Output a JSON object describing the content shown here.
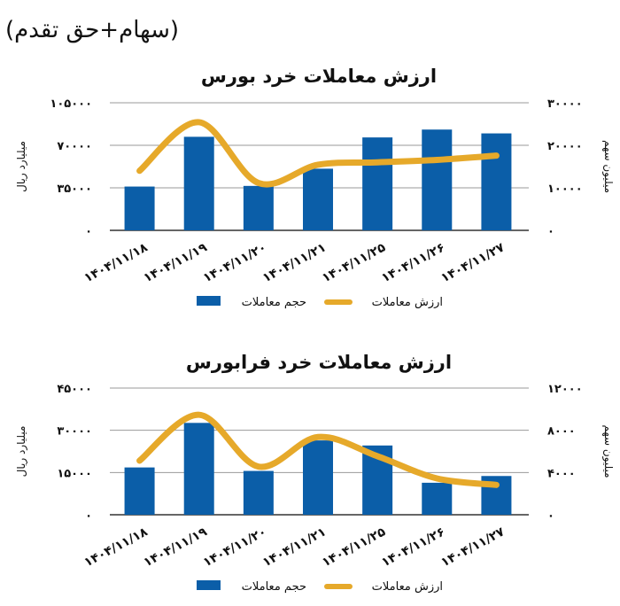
{
  "header": "(سهام+حق تقدم)",
  "colors": {
    "bars": "#0b5ea8",
    "line": "#e6a92a",
    "grid": "#9a9a9a"
  },
  "chart_data": [
    {
      "type": "bar+line",
      "title": "ارزش معاملات خرد بورس",
      "categories": [
        "۱۴۰۴/۱۱/۱۸",
        "۱۴۰۴/۱۱/۱۹",
        "۱۴۰۴/۱۱/۲۰",
        "۱۴۰۴/۱۱/۲۱",
        "۱۴۰۴/۱۱/۲۵",
        "۱۴۰۴/۱۱/۲۶",
        "۱۴۰۴/۱۱/۲۷"
      ],
      "left_axis": {
        "label": "میلیارد ریال",
        "ylim": [
          0,
          105000
        ],
        "ticks": [
          "۰",
          "۳۵۰۰۰",
          "۷۰۰۰۰",
          "۱۰۵۰۰۰"
        ],
        "tick_values": [
          0,
          35000,
          70000,
          105000
        ]
      },
      "right_axis": {
        "label": "میلیون سهم",
        "ylim": [
          0,
          30000
        ],
        "ticks": [
          "۰",
          "۱۰۰۰۰",
          "۲۰۰۰۰",
          "۳۰۰۰۰"
        ],
        "tick_values": [
          0,
          10000,
          20000,
          30000
        ]
      },
      "series": [
        {
          "name": "حجم معاملات",
          "kind": "bar",
          "axis": "right",
          "values": [
            10300,
            22000,
            10450,
            14500,
            21850,
            23700,
            22800
          ]
        },
        {
          "name": "ارزش معاملات",
          "kind": "line",
          "axis": "left",
          "smooth": true,
          "values": [
            49000,
            89000,
            39000,
            54000,
            56000,
            58000,
            61500
          ]
        }
      ],
      "grid": true,
      "legend": "bottom"
    },
    {
      "type": "bar+line",
      "title": "ارزش معاملات خرد فرابورس",
      "categories": [
        "۱۴۰۴/۱۱/۱۸",
        "۱۴۰۴/۱۱/۱۹",
        "۱۴۰۴/۱۱/۲۰",
        "۱۴۰۴/۱۱/۲۱",
        "۱۴۰۴/۱۱/۲۵",
        "۱۴۰۴/۱۱/۲۶",
        "۱۴۰۴/۱۱/۲۷"
      ],
      "left_axis": {
        "label": "میلیارد ریال",
        "ylim": [
          0,
          45000
        ],
        "ticks": [
          "۰",
          "۱۵۰۰۰",
          "۳۰۰۰۰",
          "۴۵۰۰۰"
        ],
        "tick_values": [
          0,
          15000,
          30000,
          45000
        ]
      },
      "right_axis": {
        "label": "میلیون سهم",
        "ylim": [
          0,
          12000
        ],
        "ticks": [
          "۰",
          "۴۰۰۰",
          "۸۰۰۰",
          "۱۲۰۰۰"
        ],
        "tick_values": [
          0,
          4000,
          8000,
          12000
        ]
      },
      "series": [
        {
          "name": "حجم معاملات",
          "kind": "bar",
          "axis": "right",
          "values": [
            4480,
            8700,
            4150,
            7040,
            6560,
            3030,
            3670
          ]
        },
        {
          "name": "ارزش معاملات",
          "kind": "line",
          "axis": "left",
          "smooth": true,
          "values": [
            19200,
            35500,
            17100,
            27600,
            20800,
            12900,
            10600
          ]
        }
      ],
      "grid": true,
      "legend": "bottom"
    }
  ]
}
